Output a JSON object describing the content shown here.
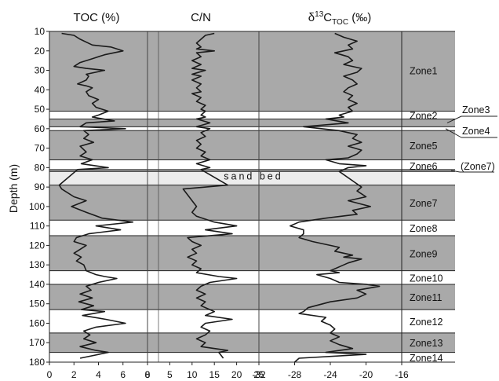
{
  "chart_data": {
    "type": "line",
    "ylabel": "Depth (m)",
    "ylim": [
      10,
      180
    ],
    "yticks": [
      10,
      20,
      30,
      40,
      50,
      60,
      70,
      80,
      90,
      100,
      110,
      120,
      130,
      140,
      150,
      160,
      170,
      180
    ],
    "panels": [
      {
        "title": "TOC (%)",
        "xlim": [
          0,
          8
        ],
        "xticks": [
          0,
          2,
          4,
          6,
          8
        ],
        "points": [
          [
            1.0,
            11
          ],
          [
            2.0,
            12
          ],
          [
            2.5,
            14
          ],
          [
            3.5,
            17
          ],
          [
            5.0,
            18
          ],
          [
            6.0,
            20
          ],
          [
            4.5,
            22
          ],
          [
            3.5,
            24
          ],
          [
            2.5,
            26
          ],
          [
            2.0,
            28
          ],
          [
            3.0,
            29
          ],
          [
            4.5,
            30
          ],
          [
            3.0,
            32
          ],
          [
            3.2,
            33
          ],
          [
            3.0,
            35
          ],
          [
            2.3,
            37
          ],
          [
            3.0,
            38
          ],
          [
            3.5,
            39
          ],
          [
            3.0,
            41
          ],
          [
            3.2,
            43
          ],
          [
            4.0,
            45
          ],
          [
            3.5,
            47
          ],
          [
            3.8,
            49
          ],
          [
            4.8,
            51
          ],
          [
            4.0,
            53
          ],
          [
            3.5,
            54
          ],
          [
            5.3,
            56
          ],
          [
            3.0,
            57
          ],
          [
            2.5,
            59
          ],
          [
            6.2,
            60
          ],
          [
            2.8,
            61
          ],
          [
            3.2,
            63
          ],
          [
            2.8,
            65
          ],
          [
            3.6,
            67
          ],
          [
            2.5,
            69
          ],
          [
            3.0,
            72
          ],
          [
            2.5,
            74
          ],
          [
            3.5,
            76
          ],
          [
            2.6,
            78
          ],
          [
            4.8,
            80
          ],
          [
            2.3,
            81
          ],
          [
            0.8,
            89
          ],
          [
            1.0,
            91
          ],
          [
            2.0,
            95
          ],
          [
            3.0,
            97
          ],
          [
            1.8,
            100
          ],
          [
            3.0,
            103
          ],
          [
            4.3,
            106
          ],
          [
            6.8,
            108
          ],
          [
            3.8,
            110
          ],
          [
            5.8,
            112
          ],
          [
            3.2,
            114
          ],
          [
            2.2,
            116
          ],
          [
            2.0,
            118
          ],
          [
            3.0,
            120
          ],
          [
            2.5,
            122
          ],
          [
            2.0,
            124
          ],
          [
            2.6,
            126
          ],
          [
            2.2,
            128
          ],
          [
            2.8,
            130
          ],
          [
            3.0,
            133
          ],
          [
            3.8,
            135
          ],
          [
            4.5,
            136
          ],
          [
            5.5,
            137
          ],
          [
            4.0,
            139
          ],
          [
            3.0,
            141
          ],
          [
            3.4,
            143
          ],
          [
            2.5,
            145
          ],
          [
            3.5,
            147
          ],
          [
            2.4,
            149
          ],
          [
            3.6,
            151
          ],
          [
            2.6,
            153
          ],
          [
            4.5,
            154
          ],
          [
            2.7,
            156
          ],
          [
            4.6,
            158
          ],
          [
            6.2,
            160
          ],
          [
            3.8,
            162
          ],
          [
            2.8,
            164
          ],
          [
            3.3,
            166
          ],
          [
            2.8,
            168
          ],
          [
            3.8,
            170
          ],
          [
            2.5,
            172
          ],
          [
            3.8,
            174
          ],
          [
            4.8,
            175
          ],
          [
            2.5,
            178
          ]
        ]
      },
      {
        "title": "C/N",
        "xlim": [
          0,
          25
        ],
        "xticks": [
          0,
          5,
          10,
          15,
          20,
          25
        ],
        "points": [
          [
            15.0,
            11
          ],
          [
            13.0,
            12
          ],
          [
            12.0,
            14
          ],
          [
            11.0,
            16
          ],
          [
            12.0,
            18
          ],
          [
            11.0,
            19
          ],
          [
            15.0,
            20
          ],
          [
            11.0,
            21
          ],
          [
            12.0,
            23
          ],
          [
            10.0,
            25
          ],
          [
            12.0,
            27
          ],
          [
            10.0,
            29
          ],
          [
            13.0,
            30
          ],
          [
            10.0,
            32
          ],
          [
            12.0,
            33
          ],
          [
            10.0,
            35
          ],
          [
            12.0,
            37
          ],
          [
            11.0,
            39
          ],
          [
            12.0,
            41
          ],
          [
            10.0,
            42
          ],
          [
            12.0,
            44
          ],
          [
            11.0,
            46
          ],
          [
            13.0,
            48
          ],
          [
            12.0,
            50
          ],
          [
            13.0,
            51
          ],
          [
            12.0,
            53
          ],
          [
            13.0,
            54
          ],
          [
            11.0,
            55
          ],
          [
            14.0,
            57
          ],
          [
            11.0,
            59
          ],
          [
            14.0,
            60
          ],
          [
            12.0,
            62
          ],
          [
            13.0,
            64
          ],
          [
            11.0,
            66
          ],
          [
            12.0,
            68
          ],
          [
            11.0,
            70
          ],
          [
            13.0,
            72
          ],
          [
            12.0,
            74
          ],
          [
            14.0,
            76
          ],
          [
            11.0,
            78
          ],
          [
            14.0,
            80
          ],
          [
            12.0,
            81
          ],
          [
            18.0,
            89
          ],
          [
            8.0,
            91
          ],
          [
            9.0,
            94
          ],
          [
            10.0,
            97
          ],
          [
            11.0,
            100
          ],
          [
            10.0,
            103
          ],
          [
            11.0,
            105
          ],
          [
            15.0,
            108
          ],
          [
            20.0,
            110
          ],
          [
            13.0,
            112
          ],
          [
            19.0,
            114
          ],
          [
            9.0,
            116
          ],
          [
            10.0,
            118
          ],
          [
            12.0,
            120
          ],
          [
            10.0,
            122
          ],
          [
            11.0,
            124
          ],
          [
            9.0,
            126
          ],
          [
            11.0,
            128
          ],
          [
            10.0,
            130
          ],
          [
            12.0,
            132
          ],
          [
            11.0,
            134
          ],
          [
            16.0,
            136
          ],
          [
            20.0,
            137
          ],
          [
            14.0,
            139
          ],
          [
            12.0,
            141
          ],
          [
            11.0,
            143
          ],
          [
            13.0,
            145
          ],
          [
            11.0,
            147
          ],
          [
            13.0,
            149
          ],
          [
            12.0,
            151
          ],
          [
            14.0,
            153
          ],
          [
            15.0,
            154
          ],
          [
            13.0,
            156
          ],
          [
            19.0,
            158
          ],
          [
            13.0,
            160
          ],
          [
            12.0,
            162
          ],
          [
            14.0,
            164
          ],
          [
            13.0,
            166
          ],
          [
            11.0,
            168
          ],
          [
            13.0,
            170
          ],
          [
            12.0,
            172
          ],
          [
            18.0,
            174
          ],
          [
            16.0,
            175
          ],
          [
            17.0,
            178
          ]
        ]
      },
      {
        "title": "δ13CTOC (‰)",
        "xlim": [
          -32,
          -16
        ],
        "xticks": [
          -32,
          -28,
          -24,
          -20,
          -16
        ],
        "points": [
          [
            -23.5,
            11
          ],
          [
            -22.5,
            13
          ],
          [
            -21.0,
            15
          ],
          [
            -22.0,
            17
          ],
          [
            -21.5,
            19
          ],
          [
            -23.5,
            21
          ],
          [
            -22.0,
            23
          ],
          [
            -21.5,
            25
          ],
          [
            -22.5,
            27
          ],
          [
            -20.5,
            29
          ],
          [
            -21.0,
            31
          ],
          [
            -22.5,
            33
          ],
          [
            -21.5,
            35
          ],
          [
            -21.0,
            37
          ],
          [
            -22.0,
            39
          ],
          [
            -22.5,
            41
          ],
          [
            -21.5,
            43
          ],
          [
            -22.0,
            45
          ],
          [
            -21.0,
            47
          ],
          [
            -22.0,
            49
          ],
          [
            -21.5,
            51
          ],
          [
            -23.0,
            53
          ],
          [
            -22.5,
            54
          ],
          [
            -24.5,
            55
          ],
          [
            -22.0,
            57
          ],
          [
            -27.0,
            59
          ],
          [
            -23.0,
            61
          ],
          [
            -21.0,
            63
          ],
          [
            -21.5,
            65
          ],
          [
            -20.5,
            67
          ],
          [
            -22.0,
            69
          ],
          [
            -20.5,
            71
          ],
          [
            -21.0,
            73
          ],
          [
            -22.0,
            75
          ],
          [
            -24.5,
            76
          ],
          [
            -23.0,
            78
          ],
          [
            -20.0,
            79
          ],
          [
            -22.0,
            80
          ],
          [
            -23.0,
            82
          ],
          [
            -20.5,
            90
          ],
          [
            -21.0,
            92
          ],
          [
            -20.0,
            95
          ],
          [
            -22.0,
            97
          ],
          [
            -19.5,
            100
          ],
          [
            -21.5,
            102
          ],
          [
            -21.0,
            104
          ],
          [
            -24.5,
            106
          ],
          [
            -27.5,
            108
          ],
          [
            -28.5,
            110
          ],
          [
            -27.0,
            112
          ],
          [
            -27.0,
            114
          ],
          [
            -27.5,
            116
          ],
          [
            -26.0,
            118
          ],
          [
            -24.0,
            120
          ],
          [
            -23.0,
            121
          ],
          [
            -23.5,
            123
          ],
          [
            -21.5,
            125
          ],
          [
            -22.5,
            126
          ],
          [
            -20.5,
            127
          ],
          [
            -22.0,
            129
          ],
          [
            -23.0,
            131
          ],
          [
            -24.0,
            133
          ],
          [
            -23.0,
            134
          ],
          [
            -25.5,
            135
          ],
          [
            -24.0,
            137
          ],
          [
            -23.0,
            139
          ],
          [
            -20.0,
            140
          ],
          [
            -18.5,
            141
          ],
          [
            -21.0,
            143
          ],
          [
            -20.0,
            145
          ],
          [
            -21.0,
            147
          ],
          [
            -24.0,
            149
          ],
          [
            -26.5,
            152
          ],
          [
            -27.0,
            154
          ],
          [
            -27.5,
            155
          ],
          [
            -24.5,
            157
          ],
          [
            -25.0,
            159
          ],
          [
            -24.0,
            161
          ],
          [
            -23.5,
            163
          ],
          [
            -24.0,
            165
          ],
          [
            -23.0,
            167
          ],
          [
            -24.0,
            169
          ],
          [
            -23.0,
            171
          ],
          [
            -21.5,
            173
          ],
          [
            -24.5,
            175
          ],
          [
            -20.0,
            176
          ],
          [
            -27.5,
            178
          ],
          [
            -28.0,
            180
          ]
        ]
      }
    ],
    "zones": [
      {
        "label": "Zone1",
        "top": 10,
        "bottom": 51,
        "shaded": true
      },
      {
        "label": "Zone2",
        "top": 51,
        "bottom": 55,
        "shaded": false
      },
      {
        "label": "Zone3",
        "top": 55,
        "bottom": 59,
        "shaded": true
      },
      {
        "label": "Zone4",
        "top": 59,
        "bottom": 61,
        "shaded": false
      },
      {
        "label": "Zone5",
        "top": 61,
        "bottom": 76,
        "shaded": true
      },
      {
        "label": "Zone6",
        "top": 76,
        "bottom": 81,
        "shaded": false
      },
      {
        "label": "(Zone7)",
        "top": 81,
        "bottom": 82,
        "shaded": true
      },
      {
        "label": "sand bed",
        "top": 82,
        "bottom": 89,
        "shaded": false,
        "band": true
      },
      {
        "label": "Zone7",
        "top": 89,
        "bottom": 107,
        "shaded": true
      },
      {
        "label": "Zone8",
        "top": 107,
        "bottom": 115,
        "shaded": false
      },
      {
        "label": "Zone9",
        "top": 115,
        "bottom": 133,
        "shaded": true
      },
      {
        "label": "Zone10",
        "top": 133,
        "bottom": 140,
        "shaded": false
      },
      {
        "label": "Zone11",
        "top": 140,
        "bottom": 153,
        "shaded": true
      },
      {
        "label": "Zone12",
        "top": 153,
        "bottom": 165,
        "shaded": false
      },
      {
        "label": "Zone13",
        "top": 165,
        "bottom": 175,
        "shaded": true
      },
      {
        "label": "Zone14",
        "top": 175,
        "bottom": 180,
        "shaded": false
      }
    ],
    "colors": {
      "zone_fill": "#a9a9a9",
      "sand_bed_fill": "#ececec",
      "line": "#1a1a1a"
    }
  }
}
